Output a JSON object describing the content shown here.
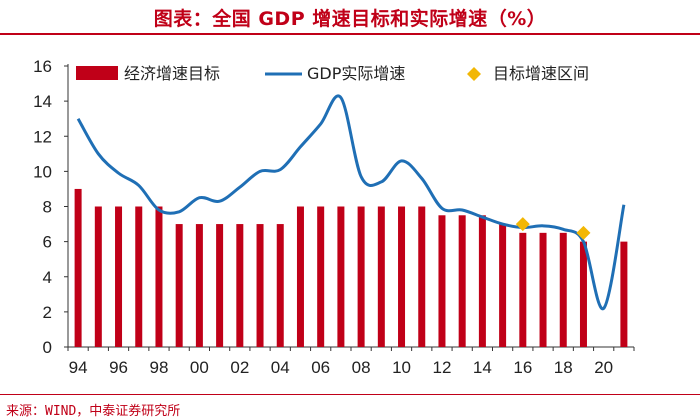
{
  "header": {
    "title": "图表：全国 GDP 增速目标和实际增速（%）"
  },
  "footer": {
    "source": "来源：WIND，中泰证券研究所"
  },
  "chart_data": {
    "type": "bar",
    "title": "全国 GDP 增速目标和实际增速（%）",
    "xlabel": "",
    "ylabel": "",
    "ylim": [
      0,
      16
    ],
    "yticks": [
      0,
      2,
      4,
      6,
      8,
      10,
      12,
      14,
      16
    ],
    "grid": false,
    "legend_position": "top",
    "years": [
      1994,
      1995,
      1996,
      1997,
      1998,
      1999,
      2000,
      2001,
      2002,
      2003,
      2004,
      2005,
      2006,
      2007,
      2008,
      2009,
      2010,
      2011,
      2012,
      2013,
      2014,
      2015,
      2016,
      2017,
      2018,
      2019,
      2020,
      2021
    ],
    "xtick_labels": [
      {
        "year": 1994,
        "label": "94"
      },
      {
        "year": 1996,
        "label": "96"
      },
      {
        "year": 1998,
        "label": "98"
      },
      {
        "year": 2000,
        "label": "00"
      },
      {
        "year": 2002,
        "label": "02"
      },
      {
        "year": 2004,
        "label": "04"
      },
      {
        "year": 2006,
        "label": "06"
      },
      {
        "year": 2008,
        "label": "08"
      },
      {
        "year": 2010,
        "label": "10"
      },
      {
        "year": 2012,
        "label": "12"
      },
      {
        "year": 2014,
        "label": "14"
      },
      {
        "year": 2016,
        "label": "16"
      },
      {
        "year": 2018,
        "label": "18"
      },
      {
        "year": 2020,
        "label": "20"
      }
    ],
    "series": [
      {
        "name": "经济增速目标",
        "type": "bar",
        "color": "#c00018",
        "values": [
          9,
          8,
          8,
          8,
          8,
          7,
          7,
          7,
          7,
          7,
          7,
          8,
          8,
          8,
          8,
          8,
          8,
          8,
          7.5,
          7.5,
          7.5,
          7,
          6.5,
          6.5,
          6.5,
          6,
          null,
          6
        ]
      },
      {
        "name": "GDP实际增速",
        "type": "line",
        "color": "#1f6fb5",
        "x": [
          1994,
          1995,
          1996,
          1997,
          1998,
          1999,
          2000,
          2001,
          2002,
          2003,
          2004,
          2005,
          2006,
          2007,
          2008,
          2009,
          2010,
          2011,
          2012,
          2013,
          2014,
          2015,
          2016,
          2017,
          2018,
          2019,
          2020,
          2021
        ],
        "values": [
          13.0,
          11.0,
          9.9,
          9.2,
          7.8,
          7.7,
          8.5,
          8.3,
          9.1,
          10.0,
          10.1,
          11.4,
          12.7,
          14.2,
          9.7,
          9.4,
          10.6,
          9.6,
          7.9,
          7.8,
          7.4,
          7.0,
          6.8,
          6.9,
          6.7,
          6.0,
          2.2,
          8.1
        ]
      },
      {
        "name": "目标增速区间",
        "type": "scatter",
        "color": "#f2b705",
        "x": [
          2016,
          2019
        ],
        "values": [
          7.0,
          6.5
        ]
      }
    ]
  }
}
